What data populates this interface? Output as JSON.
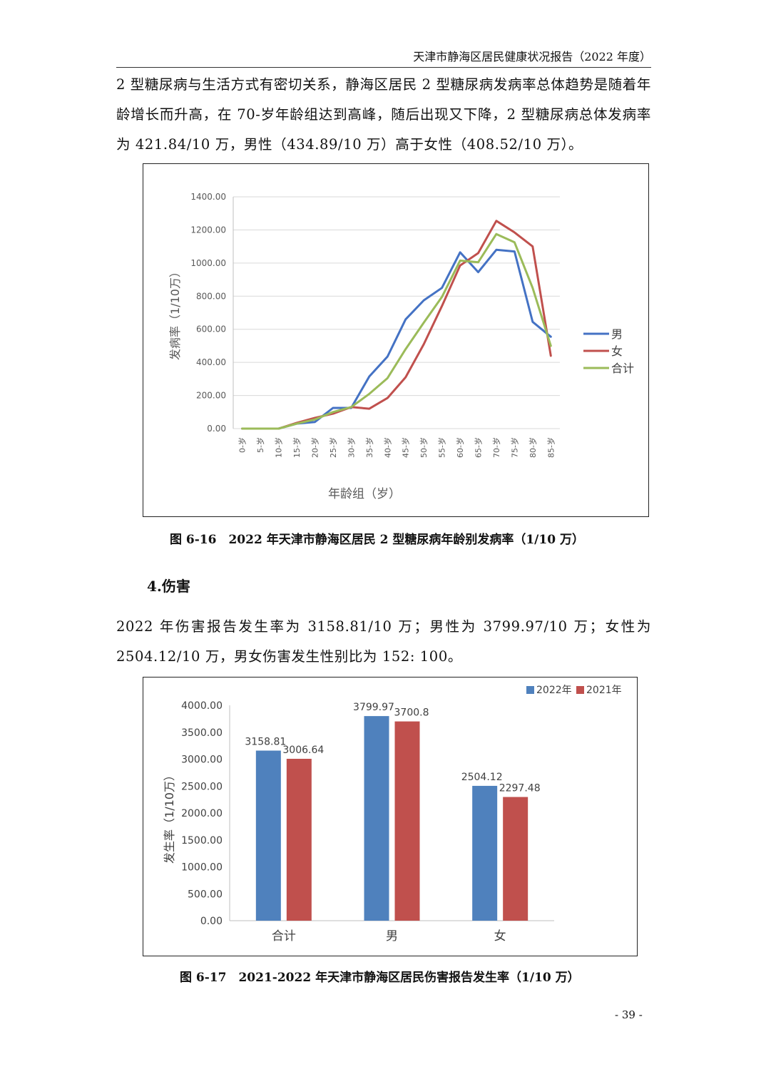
{
  "header": {
    "title": "天津市静海区居民健康状况报告（2022 年度）"
  },
  "paragraphs": {
    "p1": "2 型糖尿病与生活方式有密切关系，静海区居民 2 型糖尿病发病率总体趋势是随着年龄增长而升高，在 70-岁年龄组达到高峰，随后出现又下降，2 型糖尿病总体发病率为 421.84/10 万，男性（434.89/10 万）高于女性（408.52/10 万）。",
    "heading": "4.伤害",
    "p2": "2022 年伤害报告发生率为 3158.81/10 万；男性为 3799.97/10 万；女性为 2504.12/10 万，男女伤害发生性别比为 152: 100。"
  },
  "captions": {
    "fig16": "图 6-16　2022 年天津市静海区居民 2 型糖尿病年龄别发病率（1/10 万）",
    "fig17": "图 6-17　2021-2022 年天津市静海区居民伤害报告发生率（1/10 万）"
  },
  "page_number": "- 39 -",
  "chart_data": [
    {
      "type": "line",
      "title": "",
      "xlabel": "年龄组（岁）",
      "ylabel": "发病率（1/10万）",
      "ylim": [
        0,
        1400
      ],
      "yticks": [
        "0.00",
        "200.00",
        "400.00",
        "600.00",
        "800.00",
        "1000.00",
        "1200.00",
        "1400.00"
      ],
      "grid": true,
      "legend_position": "right",
      "categories": [
        "0-岁",
        "5-岁",
        "10-岁",
        "15-岁",
        "20-岁",
        "25-岁",
        "30-岁",
        "35-岁",
        "40-岁",
        "45-岁",
        "50-岁",
        "55-岁",
        "60-岁",
        "65-岁",
        "70-岁",
        "75-岁",
        "80-岁",
        "85-岁"
      ],
      "series": [
        {
          "name": "男",
          "color": "#4472C4",
          "values": [
            0,
            0,
            0,
            30,
            40,
            125,
            125,
            315,
            435,
            660,
            775,
            850,
            1065,
            945,
            1080,
            1070,
            645,
            555
          ]
        },
        {
          "name": "女",
          "color": "#C0504D",
          "values": [
            0,
            0,
            0,
            35,
            65,
            90,
            130,
            120,
            185,
            310,
            510,
            740,
            985,
            1060,
            1255,
            1185,
            1100,
            440
          ]
        },
        {
          "name": "合计",
          "color": "#9BBB59",
          "values": [
            0,
            0,
            0,
            30,
            55,
            100,
            130,
            210,
            305,
            480,
            640,
            795,
            1015,
            1005,
            1175,
            1125,
            850,
            500
          ]
        }
      ]
    },
    {
      "type": "bar",
      "title": "",
      "xlabel": "",
      "ylabel": "发生率（1/10万）",
      "ylim": [
        0,
        4000
      ],
      "yticks": [
        "0.00",
        "500.00",
        "1000.00",
        "1500.00",
        "2000.00",
        "2500.00",
        "3000.00",
        "3500.00",
        "4000.00"
      ],
      "grid": false,
      "legend_position": "top-right",
      "categories": [
        "合计",
        "男",
        "女"
      ],
      "series": [
        {
          "name": "2022年",
          "color": "#4F81BD",
          "values": [
            3158.81,
            3799.97,
            2504.12
          ],
          "labels": [
            "3158.81",
            "3799.97",
            "2504.12"
          ]
        },
        {
          "name": "2021年",
          "color": "#C0504D",
          "values": [
            3006.64,
            3700.8,
            2297.48
          ],
          "labels": [
            "3006.64",
            "3700.8",
            "2297.48"
          ]
        }
      ]
    }
  ]
}
